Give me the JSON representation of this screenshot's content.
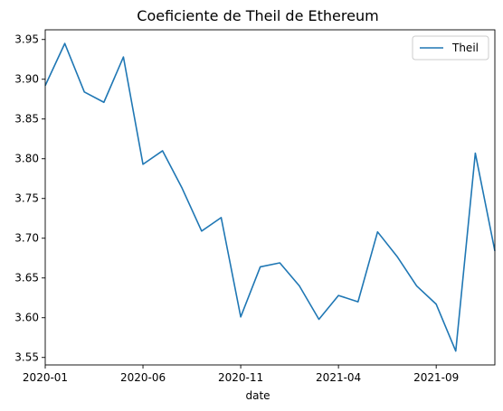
{
  "chart_data": {
    "type": "line",
    "title": "Coeficiente de Theil de Ethereum",
    "xlabel": "date",
    "ylabel": "",
    "x": [
      "2020-01",
      "2020-02",
      "2020-03",
      "2020-04",
      "2020-05",
      "2020-06",
      "2020-07",
      "2020-08",
      "2020-09",
      "2020-10",
      "2020-11",
      "2020-12",
      "2021-01",
      "2021-02",
      "2021-03",
      "2021-04",
      "2021-05",
      "2021-06",
      "2021-07",
      "2021-08",
      "2021-09",
      "2021-10",
      "2021-11",
      "2021-12"
    ],
    "series": [
      {
        "name": "Theil",
        "color": "#1f77b4",
        "values": [
          3.892,
          3.945,
          3.884,
          3.871,
          3.928,
          3.793,
          3.81,
          3.763,
          3.709,
          3.726,
          3.601,
          3.664,
          3.669,
          3.64,
          3.598,
          3.628,
          3.62,
          3.708,
          3.677,
          3.64,
          3.617,
          3.558,
          3.807,
          3.684
        ]
      }
    ],
    "xticks": [
      "2020-01",
      "2020-06",
      "2020-11",
      "2021-04",
      "2021-09"
    ],
    "yticks": [
      3.55,
      3.6,
      3.65,
      3.7,
      3.75,
      3.8,
      3.85,
      3.9,
      3.95
    ],
    "ytick_labels": [
      "3.55",
      "3.60",
      "3.65",
      "3.70",
      "3.75",
      "3.80",
      "3.85",
      "3.90",
      "3.95"
    ],
    "ylim": [
      3.5406,
      3.9622
    ],
    "xlim": [
      "2020-01",
      "2021-12"
    ],
    "grid": false,
    "legend": {
      "position": "top-right",
      "entries": [
        "Theil"
      ]
    }
  }
}
